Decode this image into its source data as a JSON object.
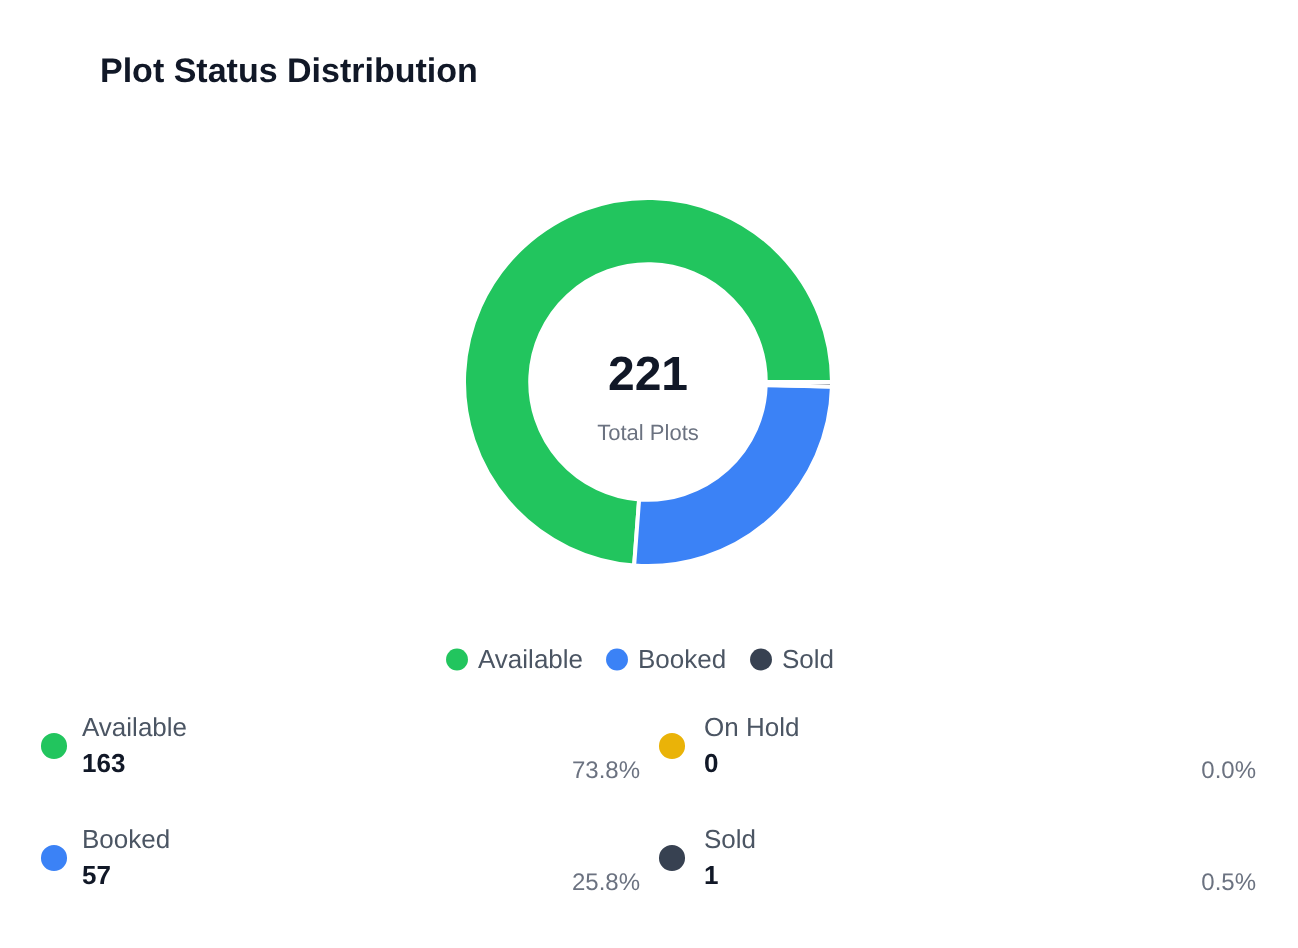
{
  "chart_data": [
    {
      "type": "donut",
      "title": "Plot Status Distribution",
      "categories": [
        "Available",
        "Booked",
        "Sold"
      ],
      "values": [
        73.8,
        25.8,
        0.4
      ],
      "colors": [
        "#22c55e",
        "#3b82f6",
        "#374151"
      ],
      "legend": "bottom",
      "annotations": [
        "221",
        "Total Plots"
      ]
    },
    {
      "type": "other",
      "categories": [
        "Available",
        "On Hold",
        "Booked",
        "Sold"
      ],
      "values": [
        163,
        0,
        57,
        1
      ],
      "colors": [
        "#22c55e",
        "#eab308",
        "#3b82f6",
        "#374151"
      ],
      "data_labels": true,
      "annotations": [
        "73.8%",
        "0.0%",
        "25.8%",
        "0.5%"
      ]
    }
  ]
}
